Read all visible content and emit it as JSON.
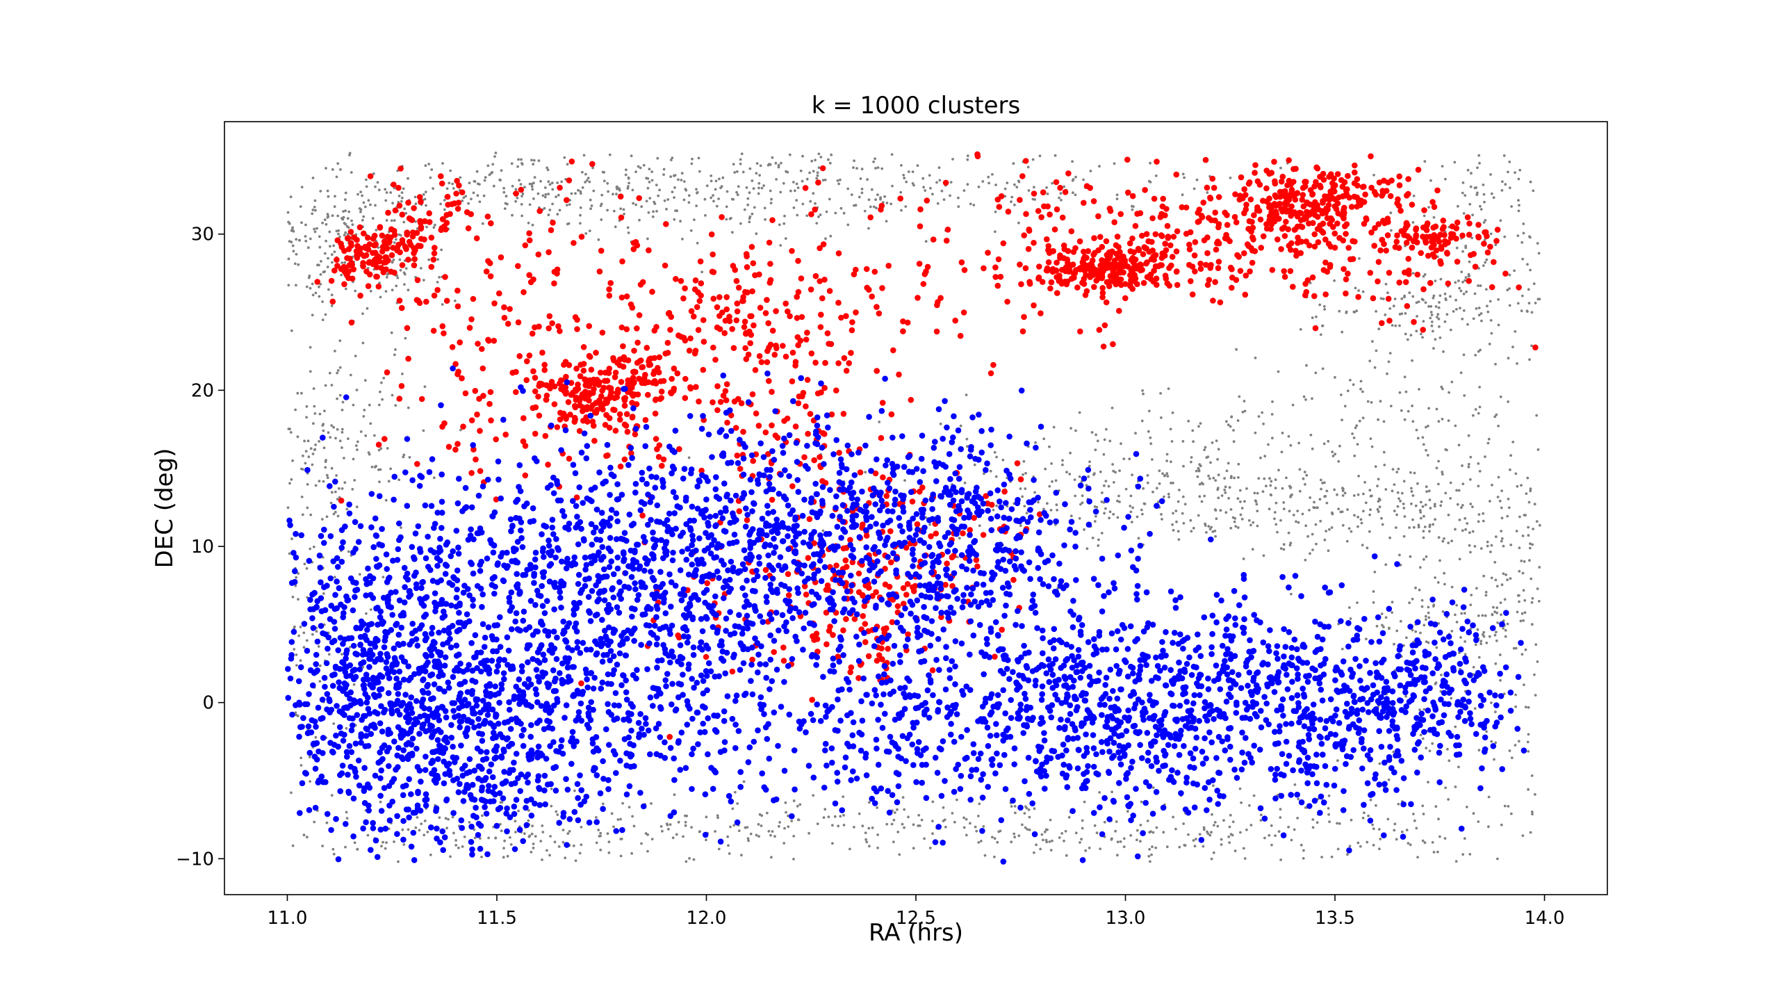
{
  "chart_data": {
    "type": "scatter",
    "title": "k = 1000 clusters",
    "xlabel": "RA (hrs)",
    "ylabel": "DEC (deg)",
    "xlim": [
      10.85,
      14.15
    ],
    "ylim": [
      -12.3,
      37.2
    ],
    "xticks": [
      11.0,
      11.5,
      12.0,
      12.5,
      13.0,
      13.5,
      14.0
    ],
    "xtick_labels": [
      "11.0",
      "11.5",
      "12.0",
      "12.5",
      "13.0",
      "13.5",
      "14.0"
    ],
    "yticks": [
      -10,
      0,
      10,
      20,
      30
    ],
    "ytick_labels": [
      "−10",
      "0",
      "10",
      "20",
      "30"
    ],
    "grid": false,
    "legend": "none",
    "colors": {
      "background": "#808080",
      "cluster_a": "#ff0000",
      "cluster_b": "#0000ff"
    },
    "series": [
      {
        "color": "#808080",
        "marker_size": "small",
        "clusters": [
          {
            "cx": 11.15,
            "cy": 29.5,
            "sx": 0.12,
            "sy": 2.2,
            "n": 260
          },
          {
            "cx": 11.55,
            "cy": 33.0,
            "sx": 0.3,
            "sy": 1.3,
            "n": 220
          },
          {
            "cx": 12.05,
            "cy": 32.5,
            "sx": 0.3,
            "sy": 1.5,
            "n": 220
          },
          {
            "cx": 12.6,
            "cy": 33.5,
            "sx": 0.35,
            "sy": 1.0,
            "n": 160
          },
          {
            "cx": 13.75,
            "cy": 25.5,
            "sx": 0.15,
            "sy": 1.2,
            "n": 120
          },
          {
            "cx": 13.9,
            "cy": 31.0,
            "sx": 0.12,
            "sy": 3.0,
            "n": 140
          },
          {
            "cx": 11.1,
            "cy": 17.5,
            "sx": 0.12,
            "sy": 3.5,
            "n": 180
          },
          {
            "cx": 13.7,
            "cy": 18.5,
            "sx": 0.22,
            "sy": 4.0,
            "n": 180
          },
          {
            "cx": 13.2,
            "cy": 17.0,
            "sx": 0.3,
            "sy": 1.5,
            "n": 90
          },
          {
            "cx": 13.4,
            "cy": 12.5,
            "sx": 0.35,
            "sy": 1.5,
            "n": 280
          },
          {
            "cx": 12.95,
            "cy": 13.5,
            "sx": 0.25,
            "sy": 1.8,
            "n": 160
          },
          {
            "cx": 13.85,
            "cy": 10.0,
            "sx": 0.15,
            "sy": 3.0,
            "n": 150
          },
          {
            "cx": 11.05,
            "cy": 5.0,
            "sx": 0.08,
            "sy": 7.0,
            "n": 140
          },
          {
            "cx": 11.5,
            "cy": -8.5,
            "sx": 0.3,
            "sy": 1.0,
            "n": 170
          },
          {
            "cx": 12.3,
            "cy": -7.5,
            "sx": 0.35,
            "sy": 1.0,
            "n": 150
          },
          {
            "cx": 12.9,
            "cy": -8.5,
            "sx": 0.25,
            "sy": 1.0,
            "n": 140
          },
          {
            "cx": 13.6,
            "cy": -7.5,
            "sx": 0.3,
            "sy": 1.5,
            "n": 140
          },
          {
            "cx": 13.85,
            "cy": 2.0,
            "sx": 0.12,
            "sy": 4.0,
            "n": 140
          },
          {
            "cx": 13.75,
            "cy": 5.0,
            "sx": 0.1,
            "sy": 1.0,
            "n": 60
          }
        ]
      },
      {
        "color": "#ff0000",
        "marker_size": "large",
        "clusters": [
          {
            "cx": 11.18,
            "cy": 28.6,
            "sx": 0.04,
            "sy": 0.8,
            "n": 90
          },
          {
            "cx": 11.28,
            "cy": 29.2,
            "sx": 0.03,
            "sy": 0.6,
            "n": 40
          },
          {
            "cx": 11.35,
            "cy": 31.5,
            "sx": 0.06,
            "sy": 1.2,
            "n": 40
          },
          {
            "cx": 11.55,
            "cy": 26.0,
            "sx": 0.2,
            "sy": 4.0,
            "n": 150
          },
          {
            "cx": 11.72,
            "cy": 19.8,
            "sx": 0.07,
            "sy": 1.0,
            "n": 150
          },
          {
            "cx": 11.85,
            "cy": 21.0,
            "sx": 0.05,
            "sy": 0.8,
            "n": 60
          },
          {
            "cx": 11.95,
            "cy": 24.0,
            "sx": 0.15,
            "sy": 3.0,
            "n": 90
          },
          {
            "cx": 12.1,
            "cy": 26.0,
            "sx": 0.08,
            "sy": 2.0,
            "n": 50
          },
          {
            "cx": 12.15,
            "cy": 20.5,
            "sx": 0.1,
            "sy": 3.0,
            "n": 60
          },
          {
            "cx": 12.3,
            "cy": 24.0,
            "sx": 0.1,
            "sy": 3.0,
            "n": 40
          },
          {
            "cx": 12.6,
            "cy": 28.0,
            "sx": 0.25,
            "sy": 3.0,
            "n": 100
          },
          {
            "cx": 12.95,
            "cy": 27.8,
            "sx": 0.09,
            "sy": 0.8,
            "n": 230
          },
          {
            "cx": 13.1,
            "cy": 28.5,
            "sx": 0.1,
            "sy": 1.2,
            "n": 60
          },
          {
            "cx": 13.3,
            "cy": 30.5,
            "sx": 0.12,
            "sy": 2.0,
            "n": 120
          },
          {
            "cx": 13.4,
            "cy": 31.8,
            "sx": 0.07,
            "sy": 1.2,
            "n": 140
          },
          {
            "cx": 13.55,
            "cy": 32.5,
            "sx": 0.08,
            "sy": 1.0,
            "n": 90
          },
          {
            "cx": 13.6,
            "cy": 28.0,
            "sx": 0.12,
            "sy": 2.0,
            "n": 80
          },
          {
            "cx": 13.72,
            "cy": 29.8,
            "sx": 0.05,
            "sy": 0.6,
            "n": 60
          },
          {
            "cx": 13.85,
            "cy": 29.0,
            "sx": 0.04,
            "sy": 1.0,
            "n": 20
          },
          {
            "cx": 12.95,
            "cy": 32.0,
            "sx": 0.15,
            "sy": 2.0,
            "n": 40
          },
          {
            "cx": 11.65,
            "cy": 16.5,
            "sx": 0.2,
            "sy": 1.5,
            "n": 60
          },
          {
            "cx": 12.4,
            "cy": 8.0,
            "sx": 0.1,
            "sy": 3.0,
            "n": 150
          },
          {
            "cx": 12.1,
            "cy": 8.0,
            "sx": 0.15,
            "sy": 4.0,
            "n": 70
          },
          {
            "cx": 12.4,
            "cy": 3.0,
            "sx": 0.03,
            "sy": 1.2,
            "n": 20
          },
          {
            "cx": 12.6,
            "cy": 10.0,
            "sx": 0.1,
            "sy": 3.0,
            "n": 50
          },
          {
            "cx": 12.25,
            "cy": 15.0,
            "sx": 0.1,
            "sy": 2.0,
            "n": 40
          }
        ]
      },
      {
        "color": "#0000ff",
        "marker_size": "large",
        "clusters": [
          {
            "cx": 11.2,
            "cy": 2.0,
            "sx": 0.13,
            "sy": 5.5,
            "n": 650
          },
          {
            "cx": 11.45,
            "cy": -2.0,
            "sx": 0.15,
            "sy": 4.0,
            "n": 550
          },
          {
            "cx": 11.6,
            "cy": 8.0,
            "sx": 0.2,
            "sy": 4.0,
            "n": 450
          },
          {
            "cx": 11.85,
            "cy": 4.0,
            "sx": 0.15,
            "sy": 5.5,
            "n": 450
          },
          {
            "cx": 12.1,
            "cy": 8.5,
            "sx": 0.2,
            "sy": 5.0,
            "n": 450
          },
          {
            "cx": 12.35,
            "cy": 11.0,
            "sx": 0.2,
            "sy": 3.5,
            "n": 380
          },
          {
            "cx": 12.6,
            "cy": 9.0,
            "sx": 0.12,
            "sy": 5.0,
            "n": 220
          },
          {
            "cx": 12.5,
            "cy": -2.0,
            "sx": 0.25,
            "sy": 3.0,
            "n": 300
          },
          {
            "cx": 12.85,
            "cy": 1.0,
            "sx": 0.12,
            "sy": 3.5,
            "n": 220
          },
          {
            "cx": 13.05,
            "cy": -2.0,
            "sx": 0.15,
            "sy": 3.0,
            "n": 280
          },
          {
            "cx": 13.25,
            "cy": 2.0,
            "sx": 0.15,
            "sy": 3.0,
            "n": 250
          },
          {
            "cx": 13.5,
            "cy": -1.0,
            "sx": 0.12,
            "sy": 3.0,
            "n": 280
          },
          {
            "cx": 13.75,
            "cy": 0.5,
            "sx": 0.1,
            "sy": 2.5,
            "n": 200
          },
          {
            "cx": 12.8,
            "cy": 10.0,
            "sx": 0.15,
            "sy": 3.0,
            "n": 100
          }
        ]
      }
    ]
  }
}
